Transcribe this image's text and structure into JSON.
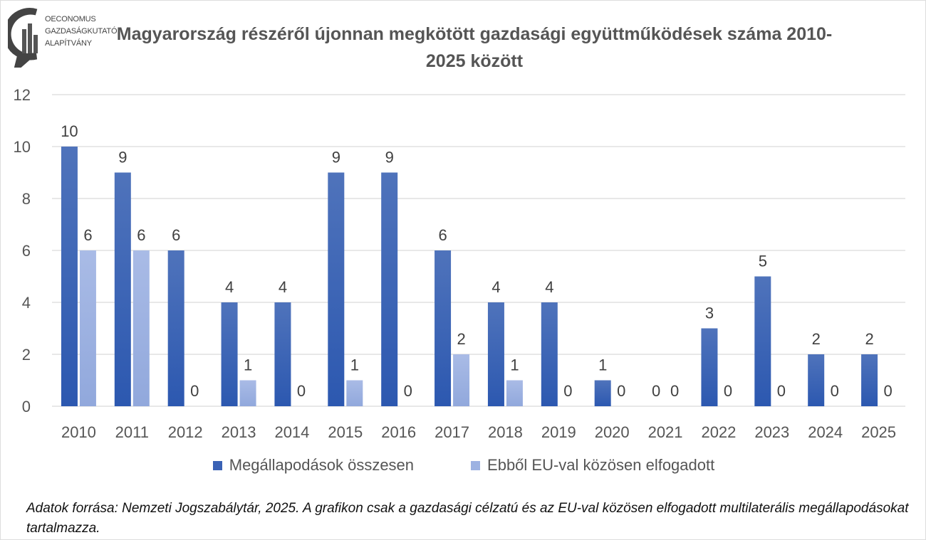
{
  "logo": {
    "lines": [
      "OECONOMUS",
      "GAZDASÁGKUTATÓ",
      "ALAPÍTVÁNY"
    ]
  },
  "chart_data": {
    "type": "bar",
    "title": "Magyarország részéről újonnan megkötött gazdasági együttműködések száma 2010-2025 között",
    "categories": [
      "2010",
      "2011",
      "2012",
      "2013",
      "2014",
      "2015",
      "2016",
      "2017",
      "2018",
      "2019",
      "2020",
      "2021",
      "2022",
      "2023",
      "2024",
      "2025"
    ],
    "series": [
      {
        "name": "Megállapodások összesen",
        "color": "#3a62b5",
        "values": [
          10,
          9,
          6,
          4,
          4,
          9,
          9,
          6,
          4,
          4,
          1,
          0,
          3,
          5,
          2,
          2
        ]
      },
      {
        "name": "Ebből EU-val közösen elfogadott",
        "color": "#9db2e2",
        "values": [
          6,
          6,
          0,
          1,
          0,
          1,
          0,
          2,
          1,
          0,
          0,
          0,
          0,
          0,
          0,
          0
        ]
      }
    ],
    "ylim": [
      0,
      12
    ],
    "yticks": [
      0,
      2,
      4,
      6,
      8,
      10,
      12
    ],
    "grid": true,
    "data_labels": true,
    "legend": "bottom"
  },
  "note": "Adatok forrása: Nemzeti Jogszabálytár, 2025. A grafikon csak a gazdasági célzatú és az EU-val közösen elfogadott multilaterális megállapodásokat tartalmazza."
}
